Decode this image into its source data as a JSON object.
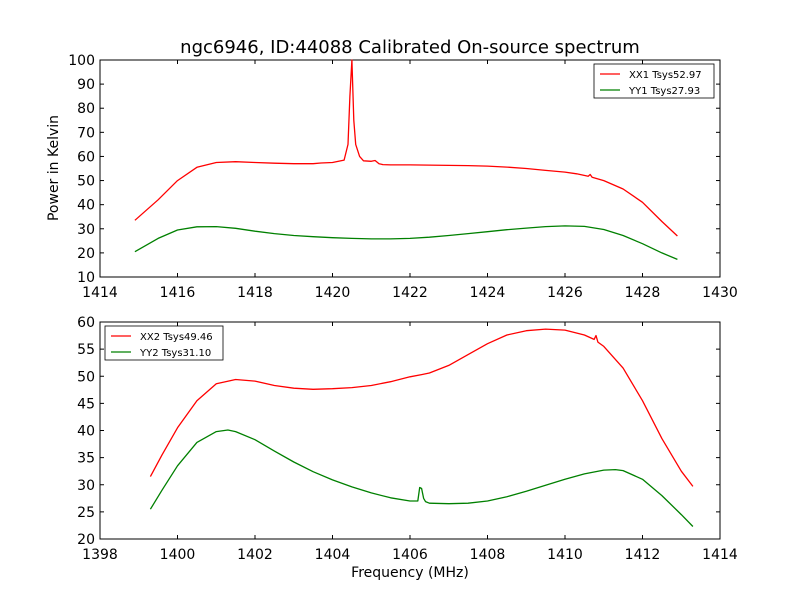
{
  "title": "ngc6946, ID:44088 Calibrated On-source spectrum",
  "colors": {
    "red": "#ff0000",
    "green": "#008000"
  },
  "chart_data": [
    {
      "type": "line",
      "title": "ngc6946, ID:44088 Calibrated On-source spectrum",
      "xlabel": "",
      "ylabel": "Power in Kelvin",
      "xlim": [
        1414,
        1430
      ],
      "ylim": [
        10,
        100
      ],
      "xticks": [
        1414,
        1416,
        1418,
        1420,
        1422,
        1424,
        1426,
        1428,
        1430
      ],
      "yticks": [
        10,
        20,
        30,
        40,
        50,
        60,
        70,
        80,
        90,
        100
      ],
      "legend_position": "top-right",
      "grid": false,
      "series": [
        {
          "name": "XX1 Tsys52.97",
          "color": "#ff0000",
          "x": [
            1414.9,
            1415.5,
            1416.0,
            1416.5,
            1417.0,
            1417.5,
            1418.0,
            1418.5,
            1419.0,
            1419.5,
            1419.7,
            1420.0,
            1420.3,
            1420.4,
            1420.45,
            1420.5,
            1420.55,
            1420.6,
            1420.7,
            1420.8,
            1421.0,
            1421.1,
            1421.2,
            1421.3,
            1421.5,
            1422.0,
            1422.5,
            1423.0,
            1423.5,
            1424.0,
            1424.5,
            1425.0,
            1425.5,
            1426.0,
            1426.3,
            1426.6,
            1426.65,
            1426.7,
            1427.0,
            1427.5,
            1428.0,
            1428.5,
            1428.9
          ],
          "y": [
            33.5,
            42.0,
            50.0,
            55.5,
            57.5,
            57.8,
            57.5,
            57.2,
            57.0,
            57.0,
            57.3,
            57.5,
            58.5,
            65.0,
            85.0,
            100.0,
            75.0,
            65.0,
            60.0,
            58.2,
            58.0,
            58.3,
            57.0,
            56.6,
            56.5,
            56.5,
            56.4,
            56.3,
            56.2,
            56.0,
            55.6,
            55.0,
            54.2,
            53.5,
            52.8,
            51.8,
            52.5,
            51.4,
            50.0,
            46.5,
            41.0,
            33.0,
            27.0
          ]
        },
        {
          "name": "YY1 Tsys27.93",
          "color": "#008000",
          "x": [
            1414.9,
            1415.5,
            1416.0,
            1416.5,
            1417.0,
            1417.5,
            1418.0,
            1418.5,
            1419.0,
            1419.5,
            1420.0,
            1420.5,
            1421.0,
            1421.5,
            1422.0,
            1422.5,
            1423.0,
            1423.5,
            1424.0,
            1424.5,
            1425.0,
            1425.5,
            1426.0,
            1426.5,
            1427.0,
            1427.5,
            1428.0,
            1428.5,
            1428.9
          ],
          "y": [
            20.5,
            26.0,
            29.5,
            30.8,
            30.9,
            30.2,
            29.0,
            28.0,
            27.2,
            26.7,
            26.3,
            26.0,
            25.8,
            25.8,
            26.0,
            26.5,
            27.2,
            28.0,
            28.8,
            29.6,
            30.3,
            30.9,
            31.2,
            31.0,
            29.7,
            27.2,
            23.8,
            20.0,
            17.3
          ]
        }
      ]
    },
    {
      "type": "line",
      "title": "",
      "xlabel": "Frequency (MHz)",
      "ylabel": "",
      "xlim": [
        1398,
        1414
      ],
      "ylim": [
        20,
        60
      ],
      "xticks": [
        1398,
        1400,
        1402,
        1404,
        1406,
        1408,
        1410,
        1412,
        1414
      ],
      "yticks": [
        20,
        25,
        30,
        35,
        40,
        45,
        50,
        55,
        60
      ],
      "legend_position": "top-left",
      "grid": false,
      "series": [
        {
          "name": "XX2 Tsys49.46",
          "color": "#ff0000",
          "x": [
            1399.3,
            1399.6,
            1400.0,
            1400.5,
            1401.0,
            1401.5,
            1402.0,
            1402.5,
            1403.0,
            1403.5,
            1404.0,
            1404.5,
            1405.0,
            1405.5,
            1406.0,
            1406.3,
            1406.5,
            1407.0,
            1407.5,
            1408.0,
            1408.5,
            1409.0,
            1409.5,
            1410.0,
            1410.5,
            1410.75,
            1410.8,
            1410.85,
            1411.0,
            1411.5,
            1412.0,
            1412.5,
            1413.0,
            1413.3
          ],
          "y": [
            31.5,
            35.5,
            40.5,
            45.5,
            48.6,
            49.4,
            49.1,
            48.3,
            47.8,
            47.6,
            47.7,
            47.9,
            48.3,
            49.0,
            49.9,
            50.3,
            50.6,
            52.0,
            54.0,
            56.0,
            57.6,
            58.4,
            58.7,
            58.5,
            57.6,
            56.8,
            57.5,
            56.3,
            55.5,
            51.5,
            45.5,
            38.5,
            32.5,
            29.7
          ]
        },
        {
          "name": "YY2 Tsys31.10",
          "color": "#008000",
          "x": [
            1399.3,
            1399.6,
            1400.0,
            1400.5,
            1401.0,
            1401.3,
            1401.5,
            1402.0,
            1402.5,
            1403.0,
            1403.5,
            1404.0,
            1404.5,
            1405.0,
            1405.5,
            1406.0,
            1406.2,
            1406.25,
            1406.3,
            1406.35,
            1406.4,
            1406.5,
            1407.0,
            1407.5,
            1408.0,
            1408.5,
            1409.0,
            1409.5,
            1410.0,
            1410.5,
            1411.0,
            1411.3,
            1411.5,
            1412.0,
            1412.5,
            1413.0,
            1413.3
          ],
          "y": [
            25.5,
            29.0,
            33.5,
            37.8,
            39.8,
            40.1,
            39.8,
            38.3,
            36.2,
            34.2,
            32.4,
            30.9,
            29.6,
            28.5,
            27.6,
            27.0,
            27.0,
            29.5,
            29.3,
            27.5,
            26.9,
            26.6,
            26.5,
            26.6,
            27.0,
            27.8,
            28.8,
            29.9,
            31.0,
            32.0,
            32.7,
            32.8,
            32.6,
            31.0,
            28.0,
            24.5,
            22.3
          ]
        }
      ]
    }
  ]
}
